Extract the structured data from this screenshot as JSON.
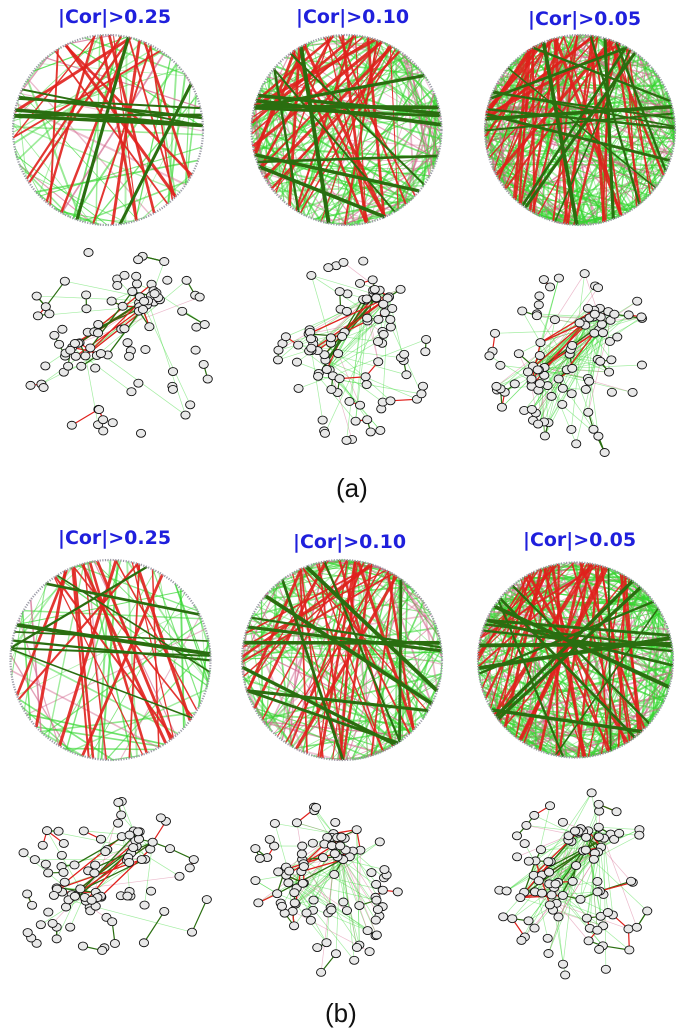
{
  "figure": {
    "part_a_label": "(a)",
    "part_b_label": "(b)",
    "thresholds": [
      "|Cor|>0.25",
      "|Cor|>0.10",
      "|Cor|>0.05"
    ]
  },
  "colors": {
    "title": "#1f1fdc",
    "edge_red": "#e0201c",
    "edge_green_dark": "#2a6e10",
    "edge_green_light": "#33d62e",
    "edge_pink": "#d2648c",
    "node_fill": "#e8e8e8",
    "node_stroke": "#111111"
  },
  "panels": [
    {
      "row": "a",
      "threshold": "|Cor|>0.25",
      "density": 0.2
    },
    {
      "row": "a",
      "threshold": "|Cor|>0.10",
      "density": 0.6
    },
    {
      "row": "a",
      "threshold": "|Cor|>0.05",
      "density": 1.0
    },
    {
      "row": "b",
      "threshold": "|Cor|>0.25",
      "density": 0.2
    },
    {
      "row": "b",
      "threshold": "|Cor|>0.10",
      "density": 0.6
    },
    {
      "row": "b",
      "threshold": "|Cor|>0.05",
      "density": 1.0
    }
  ]
}
